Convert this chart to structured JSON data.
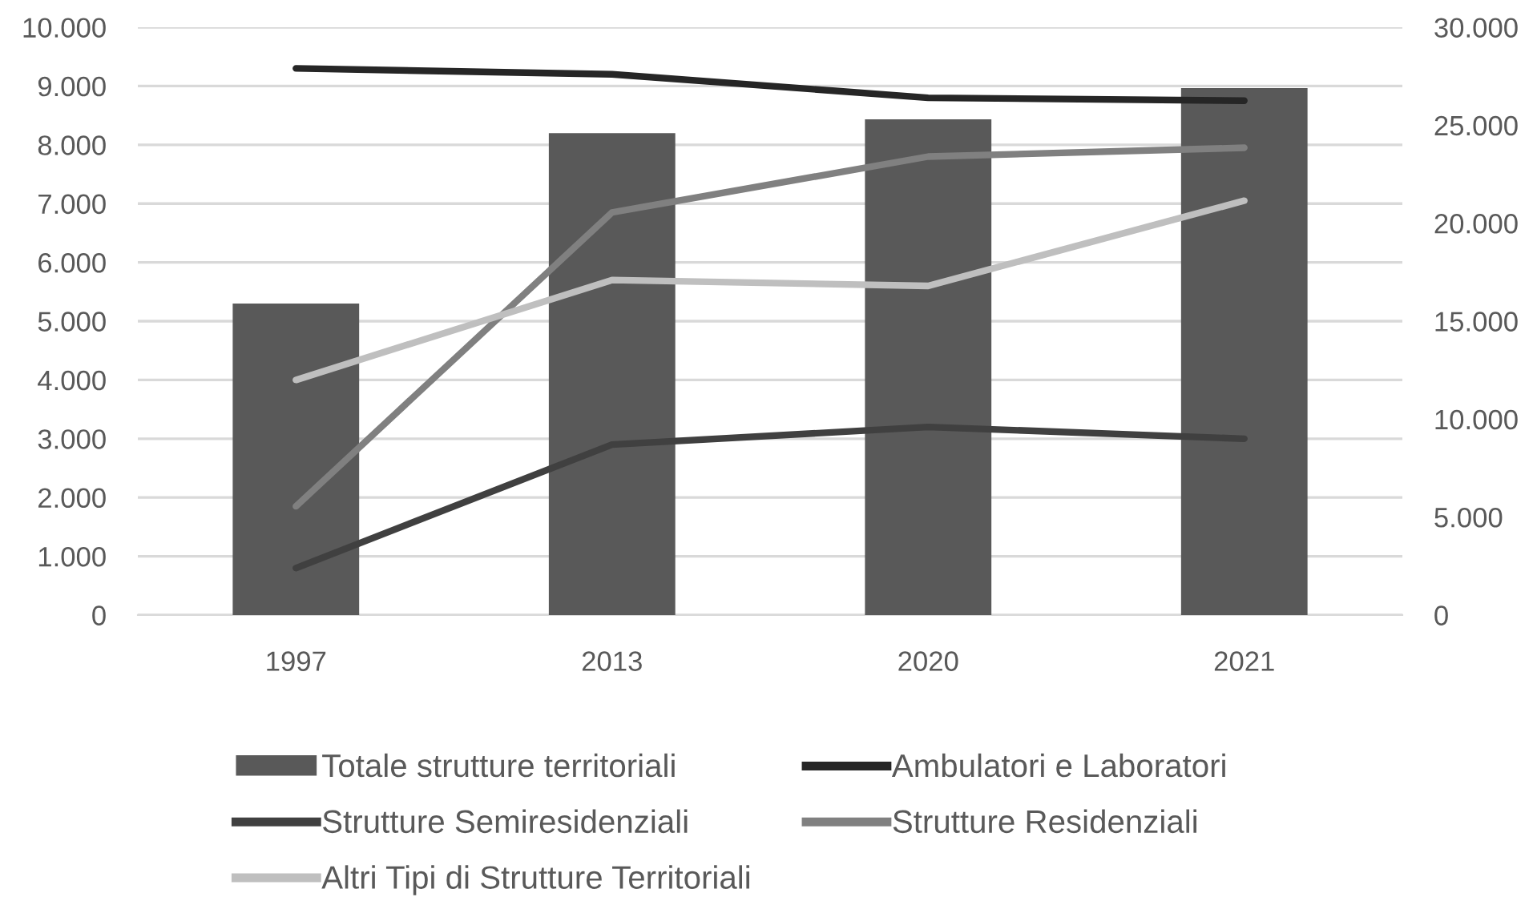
{
  "chart_data": {
    "type": "bar",
    "categories": [
      "1997",
      "2013",
      "2020",
      "2021"
    ],
    "series": [
      {
        "name": "Totale strutture territoriali",
        "axis": "y2",
        "color": "#595959",
        "values": [
          15900,
          24600,
          25300,
          26900
        ]
      },
      {
        "name": "Ambulatori e Laboratori",
        "type": "line",
        "color": "#262626",
        "values": [
          9300,
          9200,
          8800,
          8750
        ]
      },
      {
        "name": "Strutture Semiresidenziali",
        "type": "line",
        "color": "#404040",
        "values": [
          800,
          2900,
          3200,
          3000
        ]
      },
      {
        "name": "Strutture Residenziali",
        "type": "line",
        "color": "#808080",
        "values": [
          1850,
          6850,
          7800,
          7950
        ]
      },
      {
        "name": "Altri Tipi di Strutture Territoriali",
        "type": "line",
        "color": "#bfbfbf",
        "values": [
          4000,
          5700,
          5600,
          7050
        ]
      }
    ],
    "ylim": [
      0,
      10000
    ],
    "yticks": [
      0,
      {
        "value": 1000,
        "label": "1.000"
      },
      {
        "value": 2000,
        "label": "2.000"
      },
      {
        "value": 3000,
        "label": "3.000"
      },
      {
        "value": 4000,
        "label": "4.000"
      },
      {
        "value": 5000,
        "label": "5.000"
      },
      {
        "value": 6000,
        "label": "6.000"
      },
      {
        "value": 7000,
        "label": "7.000"
      },
      {
        "value": 8000,
        "label": "8.000"
      },
      {
        "value": 9000,
        "label": "9.000"
      },
      {
        "value": 10000,
        "label": "10.000"
      }
    ],
    "y2lim": [
      0,
      30000
    ],
    "y2ticks": [
      0,
      {
        "value": 5000,
        "label": "5.000"
      },
      {
        "value": 10000,
        "label": "10.000"
      },
      {
        "value": 15000,
        "label": "15.000"
      },
      {
        "value": 20000,
        "label": "20.000"
      },
      {
        "value": 25000,
        "label": "25.000"
      },
      {
        "value": 30000,
        "label": "30.000"
      }
    ],
    "grid": "y",
    "legend": "bottom"
  }
}
